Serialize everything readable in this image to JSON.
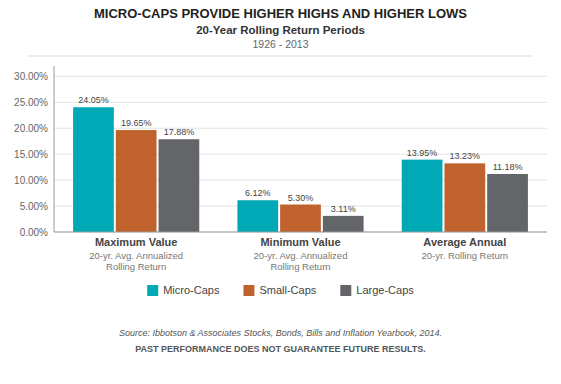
{
  "chart_data": {
    "type": "bar",
    "title": "MICRO-CAPS PROVIDE HIGHER HIGHS AND HIGHER LOWS",
    "subtitle": [
      "20-Year Rolling Return Periods",
      "1926 - 2013"
    ],
    "categories": [
      [
        "Maximum Value",
        "20-yr. Avg. Annualized",
        "Rolling Return"
      ],
      [
        "Minimum Value",
        "20-yr. Avg. Annualized",
        "Rolling Return"
      ],
      [
        "Average Annual",
        "20-yr. Rolling Return"
      ]
    ],
    "series": [
      {
        "name": "Micro-Caps",
        "color": "#00A9B5",
        "values": [
          24.05,
          6.12,
          13.95
        ],
        "value_labels": [
          "24.05%",
          "6.12%",
          "13.95%"
        ]
      },
      {
        "name": "Small-Caps",
        "color": "#C0622D",
        "values": [
          19.65,
          5.3,
          13.23
        ],
        "value_labels": [
          "19.65%",
          "5.30%",
          "13.23%"
        ]
      },
      {
        "name": "Large-Caps",
        "color": "#636569",
        "values": [
          17.88,
          3.11,
          11.18
        ],
        "value_labels": [
          "17.88%",
          "3.11%",
          "11.18%"
        ]
      }
    ],
    "ylim": [
      0,
      32
    ],
    "yticks": [
      {
        "value": 0,
        "label": "0.00%"
      },
      {
        "value": 5,
        "label": "5.00%"
      },
      {
        "value": 10,
        "label": "10.00%"
      },
      {
        "value": 15,
        "label": "15.00%"
      },
      {
        "value": 20,
        "label": "20.00%"
      },
      {
        "value": 25,
        "label": "25.00%"
      },
      {
        "value": 30,
        "label": "30.00%"
      }
    ],
    "grid": true,
    "data_labels": true,
    "legend": "bottom",
    "annotations": [
      "Source: Ibbotson & Associates Stocks, Bonds, Bills and Inflation Yearbook, 2014.",
      "PAST PERFORMANCE DOES NOT GUARANTEE FUTURE RESULTS."
    ]
  }
}
